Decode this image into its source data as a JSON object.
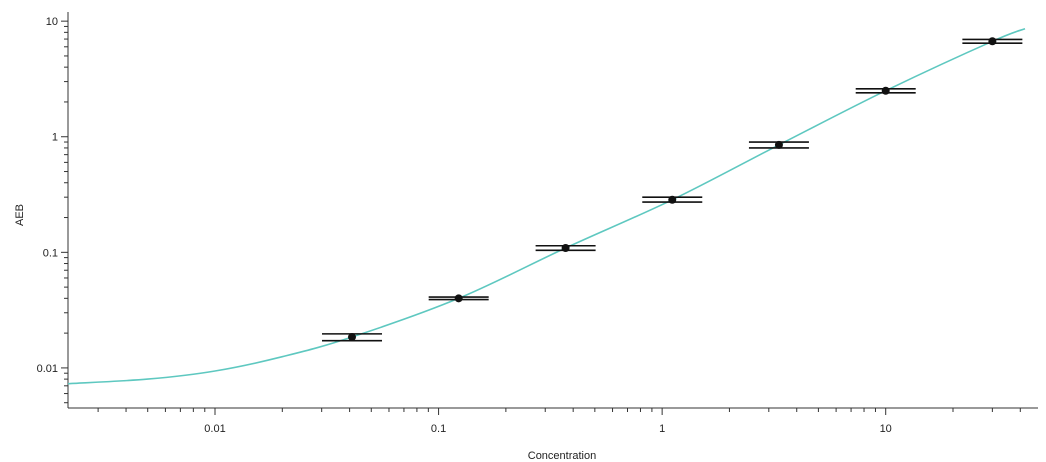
{
  "chart_data": {
    "type": "scatter",
    "title": "",
    "xlabel": "Concentration",
    "ylabel": "AEB",
    "x_scale": "log",
    "y_scale": "log",
    "xlim": [
      0.0022,
      48
    ],
    "ylim": [
      0.0045,
      12
    ],
    "grid": false,
    "x_ticks": [
      {
        "value": 0.01,
        "label": "0.01"
      },
      {
        "value": 0.1,
        "label": "0.1"
      },
      {
        "value": 1,
        "label": "1"
      },
      {
        "value": 10,
        "label": "10"
      }
    ],
    "y_ticks": [
      {
        "value": 0.01,
        "label": "0.01"
      },
      {
        "value": 0.1,
        "label": "0.1"
      },
      {
        "value": 1,
        "label": "1"
      },
      {
        "value": 10,
        "label": "10"
      }
    ],
    "points": [
      {
        "x": 0.041,
        "y": 0.0185,
        "y_err_low": 0.0172,
        "y_err_high": 0.0197
      },
      {
        "x": 0.123,
        "y": 0.04,
        "y_err_low": 0.039,
        "y_err_high": 0.041
      },
      {
        "x": 0.37,
        "y": 0.109,
        "y_err_low": 0.104,
        "y_err_high": 0.114
      },
      {
        "x": 1.11,
        "y": 0.285,
        "y_err_low": 0.272,
        "y_err_high": 0.3
      },
      {
        "x": 3.33,
        "y": 0.85,
        "y_err_low": 0.8,
        "y_err_high": 0.9
      },
      {
        "x": 10,
        "y": 2.5,
        "y_err_low": 2.4,
        "y_err_high": 2.6
      },
      {
        "x": 30,
        "y": 6.7,
        "y_err_low": 6.45,
        "y_err_high": 6.95
      }
    ],
    "fit_curve": {
      "x": [
        0.0022,
        0.005,
        0.01,
        0.02,
        0.041,
        0.123,
        0.37,
        1.11,
        3.33,
        10,
        30,
        42
      ],
      "y": [
        0.0073,
        0.008,
        0.0094,
        0.0125,
        0.0185,
        0.04,
        0.109,
        0.285,
        0.85,
        2.5,
        6.7,
        8.6
      ]
    },
    "colors": {
      "curve": "#5ec8c0",
      "points": "#111111",
      "axis": "#333333"
    }
  }
}
